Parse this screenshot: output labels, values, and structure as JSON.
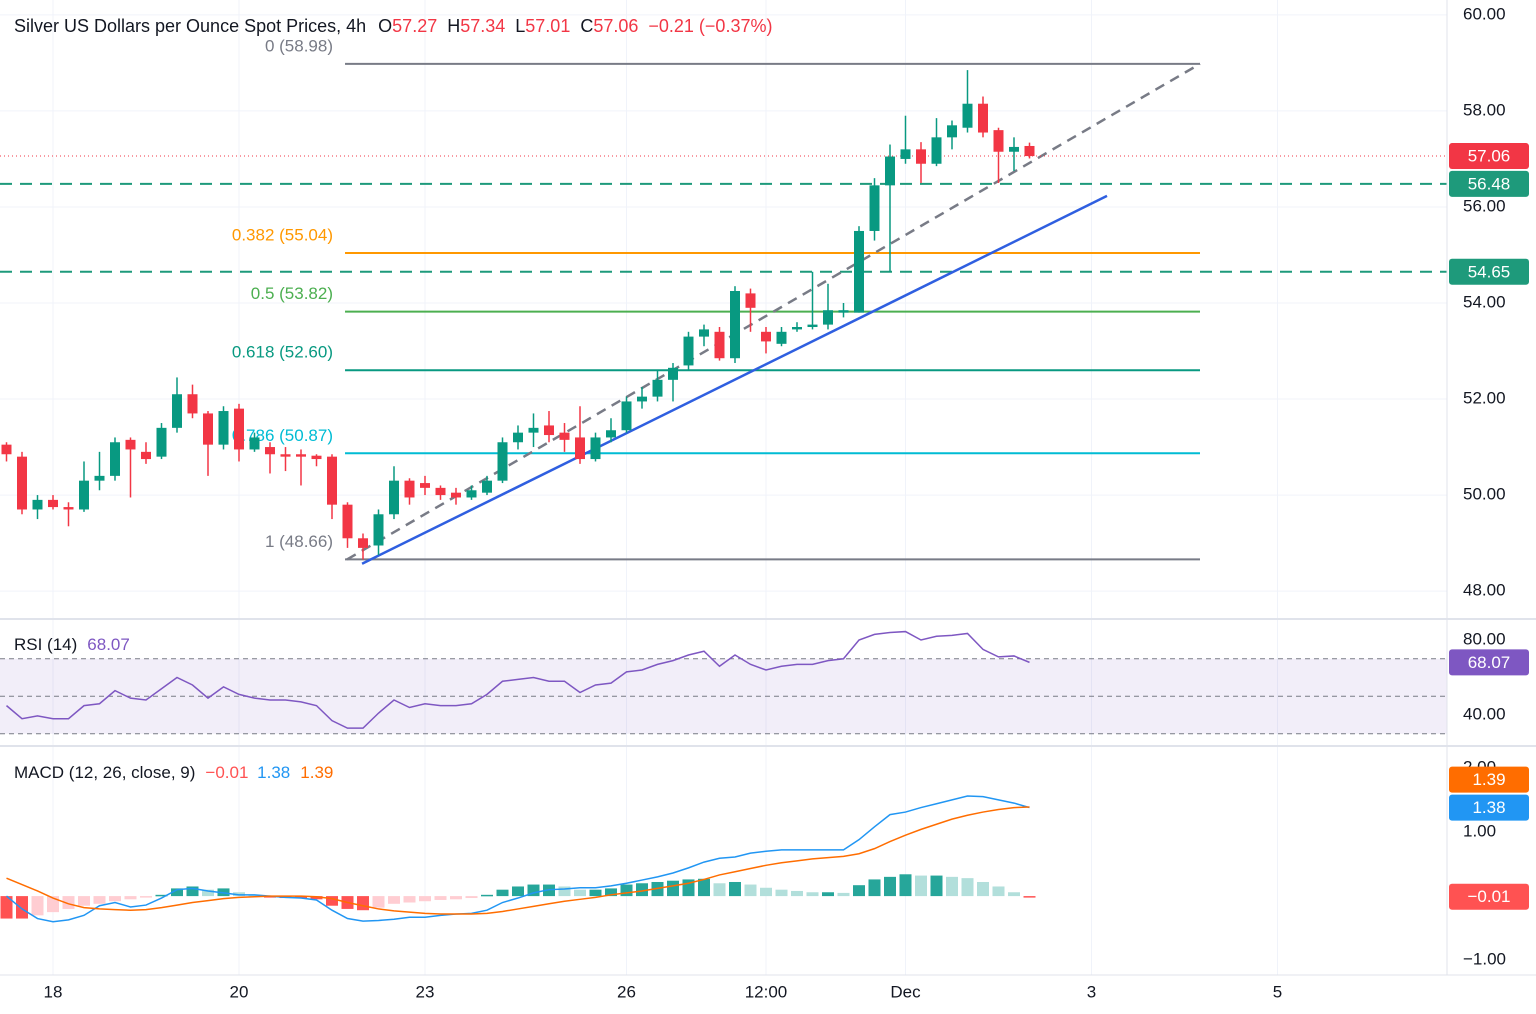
{
  "chart_data": [
    {
      "type": "candlestick",
      "title": "Silver US Dollars per Ounce Spot Prices, 4h",
      "ohlc_legend": [
        {
          "key": "O",
          "value": 57.27
        },
        {
          "key": "H",
          "value": 57.34
        },
        {
          "key": "L",
          "value": 57.01
        },
        {
          "key": "C",
          "value": 57.06
        }
      ],
      "change": "−0.21 (−0.37%)",
      "categories": [
        null,
        null,
        null,
        "18",
        null,
        null,
        null,
        null,
        null,
        null,
        null,
        null,
        null,
        null,
        null,
        "20",
        null,
        null,
        null,
        null,
        null,
        null,
        null,
        null,
        null,
        null,
        null,
        "23",
        null,
        null,
        null,
        null,
        null,
        null,
        null,
        null,
        null,
        null,
        null,
        null,
        "26",
        null,
        null,
        null,
        null,
        null,
        null,
        null,
        null,
        "12:00",
        null,
        null,
        null,
        null,
        null,
        null,
        null,
        null,
        "Dec",
        null,
        null,
        null,
        null,
        null,
        null,
        null,
        null,
        null,
        null,
        null,
        "3",
        null,
        null,
        null,
        null,
        null,
        null,
        null,
        null,
        null,
        null,
        null,
        "5"
      ],
      "open": [
        51.05,
        50.8,
        49.7,
        49.9,
        49.75,
        49.7,
        50.3,
        50.4,
        51.15,
        50.9,
        50.8,
        51.4,
        52.1,
        51.7,
        51.05,
        51.8,
        50.95,
        51.0,
        50.85,
        50.85,
        50.82,
        50.8,
        49.8,
        49.1,
        48.95,
        49.6,
        50.3,
        50.25,
        50.15,
        50.05,
        49.95,
        50.05,
        50.3,
        51.1,
        51.3,
        51.45,
        51.3,
        51.2,
        50.75,
        51.2,
        51.35,
        51.95,
        52.05,
        52.4,
        52.7,
        53.3,
        53.4,
        52.85,
        54.2,
        53.4,
        53.15,
        53.45,
        53.5,
        53.55,
        53.8,
        53.8,
        55.5,
        56.45,
        57.0,
        57.2,
        56.9,
        57.45,
        57.65,
        58.15,
        57.6,
        57.15,
        57.27,
        null,
        null,
        null,
        null,
        null,
        null,
        null,
        null,
        null,
        null,
        null,
        null,
        null,
        null,
        null,
        null
      ],
      "high": [
        51.1,
        50.9,
        50.0,
        50.0,
        49.85,
        50.7,
        50.9,
        51.2,
        51.2,
        51.1,
        51.5,
        52.45,
        52.3,
        51.75,
        51.85,
        51.9,
        51.3,
        51.1,
        51.0,
        50.95,
        50.85,
        50.85,
        49.85,
        49.2,
        49.7,
        50.6,
        50.35,
        50.4,
        50.2,
        50.15,
        50.2,
        50.4,
        51.2,
        51.45,
        51.7,
        51.75,
        51.5,
        51.85,
        51.3,
        51.6,
        52.05,
        52.25,
        52.6,
        52.75,
        53.4,
        53.55,
        53.5,
        54.35,
        54.3,
        53.5,
        53.5,
        53.6,
        54.65,
        54.4,
        54.0,
        55.6,
        56.6,
        57.3,
        57.9,
        57.35,
        57.85,
        57.8,
        58.85,
        58.3,
        57.65,
        57.45,
        57.34,
        null,
        null,
        null,
        null,
        null,
        null,
        null,
        null,
        null,
        null,
        null,
        null,
        null,
        null,
        null,
        null
      ],
      "low": [
        50.7,
        49.6,
        49.5,
        49.7,
        49.35,
        49.65,
        50.1,
        50.3,
        49.95,
        50.65,
        50.75,
        51.3,
        51.6,
        50.4,
        50.95,
        50.7,
        50.9,
        50.45,
        50.5,
        50.2,
        50.6,
        49.5,
        48.9,
        48.66,
        48.75,
        49.5,
        49.8,
        50.0,
        49.9,
        49.8,
        49.9,
        50.0,
        50.25,
        50.95,
        51.0,
        51.1,
        50.9,
        50.65,
        50.7,
        51.1,
        51.3,
        51.8,
        51.95,
        51.95,
        52.6,
        53.1,
        52.8,
        52.75,
        53.4,
        52.95,
        53.1,
        53.4,
        53.45,
        53.45,
        53.7,
        53.8,
        55.3,
        54.65,
        56.9,
        56.5,
        56.85,
        57.2,
        57.55,
        57.45,
        56.5,
        56.75,
        57.01,
        null,
        null,
        null,
        null,
        null,
        null,
        null,
        null,
        null,
        null,
        null,
        null,
        null,
        null,
        null,
        null
      ],
      "close": [
        50.85,
        49.7,
        49.9,
        49.75,
        49.7,
        50.3,
        50.4,
        51.1,
        50.95,
        50.75,
        51.4,
        52.1,
        51.7,
        51.05,
        51.75,
        50.95,
        51.2,
        50.85,
        50.8,
        50.8,
        50.75,
        49.8,
        49.1,
        48.9,
        49.6,
        50.3,
        49.95,
        50.15,
        50.0,
        49.95,
        50.1,
        50.3,
        51.1,
        51.3,
        51.4,
        51.25,
        51.15,
        50.75,
        51.2,
        51.35,
        51.95,
        52.05,
        52.4,
        52.65,
        53.3,
        53.45,
        52.85,
        54.25,
        53.9,
        53.2,
        53.4,
        53.5,
        53.55,
        53.85,
        53.85,
        55.5,
        56.45,
        57.05,
        57.2,
        56.9,
        57.45,
        57.7,
        58.15,
        57.55,
        57.15,
        57.25,
        57.06,
        null,
        null,
        null,
        null,
        null,
        null,
        null,
        null,
        null,
        null,
        null,
        null,
        null,
        null,
        null,
        null
      ],
      "up_color": "#089981",
      "down_color": "#f23645",
      "ylim": [
        47.44,
        60.31
      ],
      "yticks": [
        {
          "value": 48,
          "label": "48.00"
        },
        {
          "value": 50,
          "label": "50.00"
        },
        {
          "value": 52,
          "label": "52.00"
        },
        {
          "value": 54,
          "label": "54.00"
        },
        {
          "value": 56,
          "label": "56.00"
        },
        {
          "value": 58,
          "label": "58.00"
        },
        {
          "value": 60,
          "label": "60.00"
        }
      ],
      "grid": true,
      "last_price": {
        "value": 57.06,
        "color": "#f23645"
      },
      "levels": [
        {
          "value": 56.48,
          "color": "#1e9a7b"
        },
        {
          "value": 54.65,
          "color": "#1e9a7b"
        }
      ],
      "fib": {
        "x": [
          21.84,
          77
        ],
        "levels": [
          {
            "label": "0 (58.98)",
            "value": 58.98,
            "color": "#787b86"
          },
          {
            "label": "0.382 (55.04)",
            "value": 55.04,
            "color": "#ff9800"
          },
          {
            "label": "0.5 (53.82)",
            "value": 53.82,
            "color": "#4caf50"
          },
          {
            "label": "0.618 (52.60)",
            "value": 52.6,
            "color": "#089981"
          },
          {
            "label": "0.786 (50.87)",
            "value": 50.87,
            "color": "#00bcd4"
          },
          {
            "label": "1 (48.66)",
            "value": 48.66,
            "color": "#787b86"
          }
        ]
      },
      "trendlines": [
        {
          "x": [
            22.94,
            71.0
          ],
          "y": [
            48.57,
            56.23
          ],
          "color": "#2f5fe0",
          "dashed": false
        },
        {
          "x": [
            21.97,
            77.0
          ],
          "y": [
            48.66,
            58.98
          ],
          "color": "#787b86",
          "dashed": true
        }
      ]
    },
    {
      "type": "line",
      "title": "RSI (14)",
      "color": "#7e57c2",
      "values": [
        45,
        38,
        39.5,
        38,
        38,
        45,
        46,
        53,
        49,
        48,
        54,
        60,
        56,
        49,
        55,
        51,
        49,
        48,
        48,
        47,
        45,
        37,
        33,
        33,
        41,
        48,
        44,
        46,
        45,
        45,
        46,
        51,
        58,
        59,
        60,
        58,
        58,
        52,
        56,
        57,
        63,
        64,
        67,
        69,
        72,
        74,
        66,
        72,
        67,
        64,
        66,
        67,
        67,
        69,
        70,
        80,
        83,
        84,
        84.5,
        80,
        82,
        82.5,
        83.5,
        75,
        71,
        71.5,
        68.07,
        null,
        null,
        null,
        null,
        null,
        null,
        null,
        null,
        null,
        null,
        null,
        null,
        null,
        null,
        null,
        null
      ],
      "ylim": [
        24,
        90.67
      ],
      "yticks": [
        {
          "value": 40,
          "label": "40.00"
        },
        {
          "value": 80,
          "label": "80.00"
        }
      ],
      "band": [
        30,
        70
      ],
      "band_color": "#7e57c2",
      "levels": [
        30,
        50,
        70
      ]
    },
    {
      "type": "macd",
      "title": "MACD (12, 26, close, 9)",
      "histogram": {
        "values": [
          -0.35,
          -0.35,
          -0.3,
          -0.25,
          -0.2,
          -0.15,
          -0.12,
          -0.08,
          -0.05,
          -0.02,
          0.02,
          0.12,
          0.15,
          0.1,
          0.12,
          0.06,
          0.02,
          -0.02,
          -0.03,
          -0.03,
          -0.05,
          -0.15,
          -0.2,
          -0.22,
          -0.18,
          -0.12,
          -0.1,
          -0.08,
          -0.06,
          -0.05,
          -0.03,
          0.02,
          0.1,
          0.15,
          0.18,
          0.18,
          0.15,
          0.1,
          0.1,
          0.12,
          0.18,
          0.2,
          0.22,
          0.24,
          0.26,
          0.27,
          0.2,
          0.22,
          0.18,
          0.13,
          0.1,
          0.08,
          0.06,
          0.06,
          0.05,
          0.17,
          0.26,
          0.3,
          0.34,
          0.32,
          0.32,
          0.3,
          0.28,
          0.22,
          0.15,
          0.06,
          -0.01,
          null,
          null,
          null,
          null,
          null,
          null,
          null,
          null,
          null,
          null,
          null,
          null,
          null,
          null,
          null,
          null
        ],
        "last_label": "−0.01",
        "colors": {
          "pos_up": "#26a69a",
          "pos_down": "#b2dfdb",
          "neg_down": "#ff5252",
          "neg_up": "#ffcdd2"
        }
      },
      "macd": {
        "color": "#2196f3",
        "values": [
          0,
          -0.2,
          -0.35,
          -0.4,
          -0.37,
          -0.3,
          -0.15,
          -0.1,
          -0.17,
          -0.14,
          -0.03,
          0.1,
          0.12,
          0.08,
          0.05,
          0.02,
          0.02,
          0,
          -0.02,
          -0.03,
          -0.06,
          -0.22,
          -0.35,
          -0.39,
          -0.38,
          -0.36,
          -0.33,
          -0.33,
          -0.3,
          -0.28,
          -0.27,
          -0.22,
          -0.1,
          -0.03,
          0.05,
          0.1,
          0.11,
          0.13,
          0.13,
          0.16,
          0.2,
          0.25,
          0.3,
          0.36,
          0.44,
          0.53,
          0.59,
          0.61,
          0.67,
          0.7,
          0.72,
          0.72,
          0.72,
          0.72,
          0.72,
          0.88,
          1.08,
          1.27,
          1.31,
          1.38,
          1.44,
          1.5,
          1.56,
          1.55,
          1.5,
          1.45,
          1.38,
          null,
          null,
          null,
          null,
          null,
          null,
          null,
          null,
          null,
          null,
          null,
          null,
          null,
          null,
          null,
          null
        ]
      },
      "signal": {
        "color": "#ff6d00",
        "values": [
          0.28,
          0.18,
          0.08,
          -0.03,
          -0.12,
          -0.18,
          -0.2,
          -0.21,
          -0.22,
          -0.21,
          -0.18,
          -0.14,
          -0.1,
          -0.07,
          -0.04,
          -0.02,
          -0.01,
          0,
          0,
          0,
          -0.01,
          -0.04,
          -0.1,
          -0.15,
          -0.2,
          -0.23,
          -0.25,
          -0.27,
          -0.28,
          -0.28,
          -0.28,
          -0.27,
          -0.24,
          -0.2,
          -0.16,
          -0.12,
          -0.08,
          -0.05,
          -0.02,
          0.02,
          0.05,
          0.08,
          0.12,
          0.16,
          0.2,
          0.26,
          0.33,
          0.38,
          0.43,
          0.48,
          0.52,
          0.55,
          0.58,
          0.6,
          0.62,
          0.66,
          0.74,
          0.85,
          0.95,
          1.04,
          1.12,
          1.2,
          1.26,
          1.31,
          1.35,
          1.38,
          1.39,
          null,
          null,
          null,
          null,
          null,
          null,
          null,
          null,
          null,
          null,
          null,
          null,
          null,
          null,
          null,
          null
        ]
      },
      "ylim": [
        -1.23,
        2.34
      ],
      "yticks": [
        {
          "value": -1,
          "label": "−1.00"
        },
        {
          "value": 1,
          "label": "1.00"
        },
        {
          "value": 2,
          "label": "2.00"
        }
      ]
    }
  ]
}
